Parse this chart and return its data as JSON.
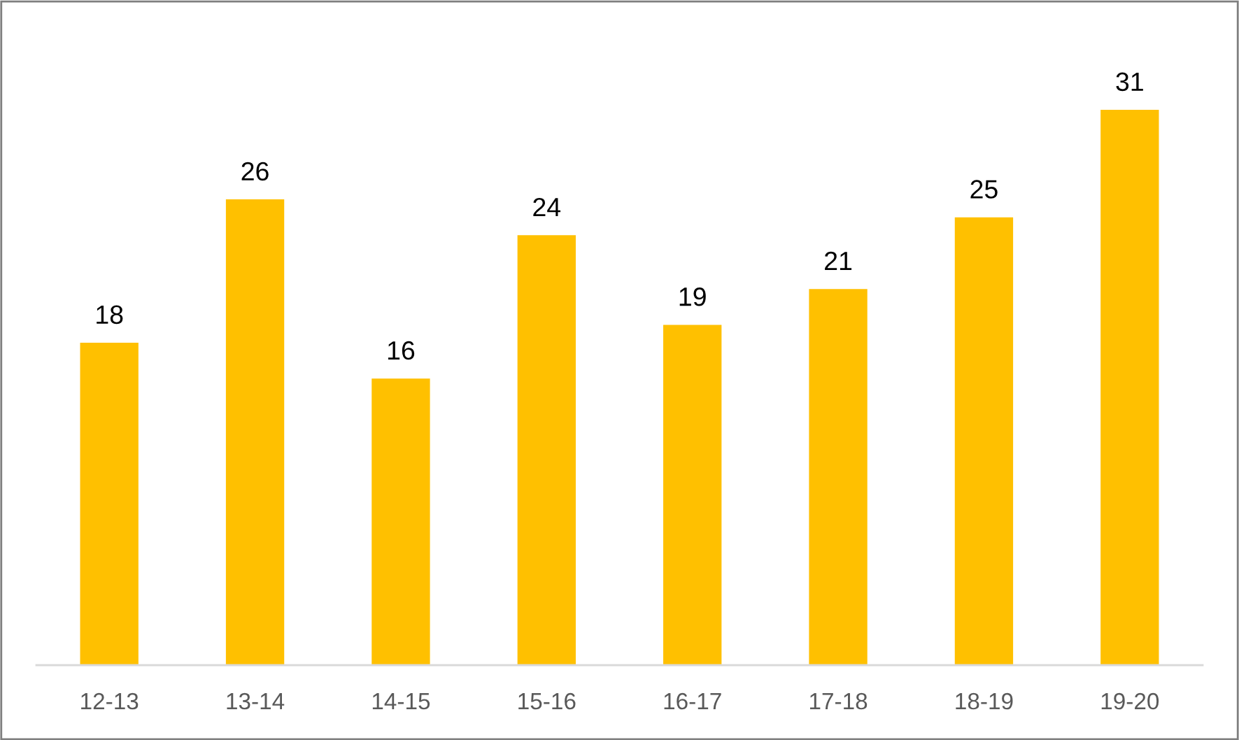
{
  "chart_data": {
    "type": "bar",
    "categories": [
      "12-13",
      "13-14",
      "14-15",
      "15-16",
      "16-17",
      "17-18",
      "18-19",
      "19-20"
    ],
    "values": [
      18,
      26,
      16,
      24,
      19,
      21,
      25,
      31
    ],
    "color": "#ffc000",
    "data_labels": true,
    "grid": false,
    "legend": false
  }
}
